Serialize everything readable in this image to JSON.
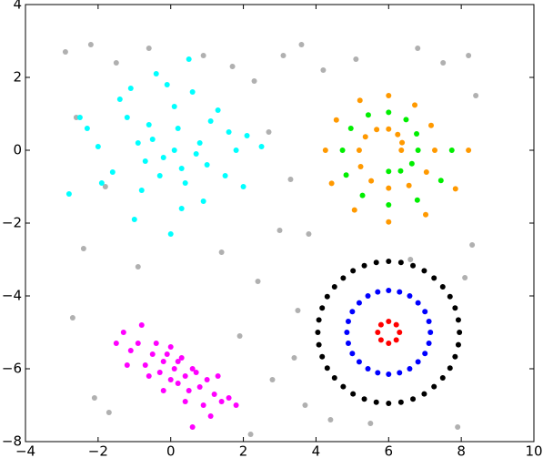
{
  "chart_data": {
    "type": "scatter",
    "xlim": [
      -4,
      10
    ],
    "ylim": [
      -8,
      4
    ],
    "xticks": [
      {
        "value": -4,
        "label": "−4"
      },
      {
        "value": -2,
        "label": "−2"
      },
      0,
      2,
      4,
      6,
      8,
      10
    ],
    "yticks": [
      {
        "value": -8,
        "label": "−8"
      },
      {
        "value": -6,
        "label": "−6"
      },
      {
        "value": -4,
        "label": "−4"
      },
      {
        "value": -2,
        "label": "−2"
      },
      0,
      2,
      4
    ],
    "grid": false,
    "series": [
      {
        "color": "#b0b0b0",
        "x": [
          -2.9,
          -2.2,
          -1.5,
          -0.6,
          0.9,
          1.7,
          2.3,
          3.1,
          3.6,
          4.2,
          5.1,
          6.8,
          7.5,
          8.2,
          -2.6,
          -1.8,
          2.7,
          3.3,
          3.8,
          8.4,
          -2.4,
          -0.9,
          1.4,
          2.4,
          3.0,
          3.5,
          8.1,
          -2.7,
          -1.7,
          1.9,
          2.8,
          3.4,
          4.4,
          7.9,
          8.3,
          -2.1,
          2.2,
          3.7,
          5.5,
          6.6
        ],
        "y": [
          2.7,
          2.9,
          2.4,
          2.8,
          2.6,
          2.3,
          1.9,
          2.6,
          2.9,
          2.2,
          2.5,
          2.8,
          2.4,
          2.6,
          0.9,
          -1.0,
          0.5,
          -0.8,
          -2.3,
          1.5,
          -2.7,
          -3.2,
          -2.8,
          -3.6,
          -2.2,
          -4.4,
          -3.5,
          -4.6,
          -7.2,
          -5.1,
          -6.3,
          -5.7,
          -7.4,
          -7.6,
          -2.6,
          -6.8,
          -7.8,
          -7.0,
          -7.5,
          -3.0
        ]
      },
      {
        "color": "#00ffff",
        "x": [
          -0.5,
          0.3,
          -1.2,
          0.8,
          1.5,
          -2.0,
          0.1,
          -0.8,
          1.1,
          -0.2,
          0.6,
          -1.6,
          2.1,
          -0.4,
          0.9,
          -2.8,
          0.2,
          -1.0,
          1.8,
          -0.6,
          0.4,
          -1.4,
          1.3,
          0.0,
          -0.9,
          0.7,
          -2.3,
          2.5,
          -0.1,
          1.0,
          -1.9,
          0.5,
          -0.3,
          1.6,
          -1.1,
          0.3,
          -0.7,
          2.0,
          -2.5,
          0.1
        ],
        "y": [
          0.3,
          -0.5,
          0.9,
          0.2,
          -0.7,
          0.1,
          1.2,
          -1.1,
          0.8,
          -0.2,
          1.6,
          -0.6,
          0.4,
          2.1,
          -1.4,
          -1.2,
          0.6,
          -1.9,
          0.0,
          0.7,
          -0.9,
          1.4,
          1.1,
          -2.3,
          0.2,
          -0.1,
          0.6,
          0.1,
          1.8,
          -0.4,
          -0.9,
          2.5,
          -0.7,
          0.5,
          1.7,
          -1.6,
          -0.3,
          -1.0,
          0.9,
          0.0
        ]
      },
      {
        "color": "#ff00ff",
        "x": [
          -1.3,
          -0.9,
          -0.5,
          -0.2,
          0.1,
          0.4,
          0.8,
          1.2,
          1.6,
          -1.1,
          -0.7,
          -0.3,
          0.0,
          0.3,
          0.6,
          1.0,
          1.4,
          -0.8,
          -0.4,
          0.2,
          0.5,
          0.9,
          -1.5,
          1.8,
          -0.1,
          0.7,
          -0.6,
          1.1,
          0.2,
          -0.2,
          0.4,
          -1.2,
          1.3,
          0.0,
          0.6
        ],
        "y": [
          -5.0,
          -5.3,
          -5.6,
          -5.8,
          -6.0,
          -6.2,
          -6.5,
          -6.7,
          -6.8,
          -5.5,
          -5.9,
          -6.1,
          -6.3,
          -5.7,
          -6.0,
          -6.3,
          -6.9,
          -4.8,
          -5.3,
          -6.4,
          -6.6,
          -7.0,
          -5.3,
          -7.0,
          -5.6,
          -6.1,
          -6.2,
          -7.3,
          -5.8,
          -6.6,
          -6.9,
          -5.9,
          -6.2,
          -5.4,
          -7.6
        ]
      },
      {
        "color": "#ff9900",
        "x": [
          6.35,
          6.37,
          6.25,
          6.0,
          5.67,
          5.36,
          5.19,
          5.23,
          5.52,
          6.0,
          6.56,
          7.04,
          7.27,
          7.17,
          6.72,
          6.0,
          5.21,
          4.56,
          4.26,
          4.43,
          5.06,
          6.0,
          7.02,
          7.84,
          8.2
        ],
        "y": [
          0,
          0.21,
          0.43,
          0.58,
          0.57,
          0.37,
          0,
          -0.45,
          -0.84,
          -1.04,
          -0.97,
          -0.6,
          0,
          0.68,
          1.24,
          1.5,
          1.37,
          0.83,
          0,
          -0.91,
          -1.64,
          -1.97,
          -1.77,
          -1.06,
          0
        ]
      },
      {
        "color": "#00ee00",
        "x": [
          6.0,
          6.33,
          6.64,
          6.81,
          6.77,
          6.48,
          6.0,
          5.44,
          4.96,
          4.73,
          4.83,
          5.28,
          6.0,
          6.79,
          7.44,
          7.74
        ],
        "y": [
          -0.58,
          -0.57,
          -0.37,
          0,
          0.45,
          0.84,
          1.04,
          0.97,
          0.6,
          0,
          -0.68,
          -1.24,
          -1.5,
          -1.37,
          -0.83,
          0
        ]
      },
      {
        "color": "#000000",
        "x": [
          7.95,
          7.92,
          7.83,
          7.69,
          7.49,
          7.25,
          6.98,
          6.67,
          6.34,
          6.0,
          5.66,
          5.33,
          5.02,
          4.75,
          4.51,
          4.31,
          4.17,
          4.08,
          4.05,
          4.08,
          4.17,
          4.31,
          4.51,
          4.75,
          5.02,
          5.33,
          5.66,
          6.0,
          6.34,
          6.67,
          6.98,
          7.25,
          7.49,
          7.69,
          7.83,
          7.92
        ],
        "y": [
          -5,
          -4.66,
          -4.33,
          -4.02,
          -3.75,
          -3.51,
          -3.31,
          -3.17,
          -3.08,
          -3.05,
          -3.08,
          -3.17,
          -3.31,
          -3.51,
          -3.75,
          -4.02,
          -4.33,
          -4.66,
          -5,
          -5.34,
          -5.67,
          -5.98,
          -6.25,
          -6.49,
          -6.69,
          -6.83,
          -6.92,
          -6.95,
          -6.92,
          -6.83,
          -6.69,
          -6.49,
          -6.25,
          -5.98,
          -5.67,
          -5.34
        ]
      },
      {
        "color": "#0000ff",
        "x": [
          7.15,
          7.11,
          7.0,
          6.81,
          6.58,
          6.3,
          6.0,
          5.7,
          5.43,
          5.19,
          5.0,
          4.89,
          4.85,
          4.89,
          5.0,
          5.19,
          5.43,
          5.7,
          6.0,
          6.3,
          6.58,
          6.81,
          7.0,
          7.11
        ],
        "y": [
          -5,
          -4.7,
          -4.43,
          -4.19,
          -4.0,
          -3.89,
          -3.85,
          -3.89,
          -4.0,
          -4.19,
          -4.43,
          -4.7,
          -5,
          -5.3,
          -5.58,
          -5.81,
          -6.0,
          -6.11,
          -6.15,
          -6.11,
          -6.0,
          -5.81,
          -5.58,
          -5.3
        ]
      },
      {
        "color": "#ff0000",
        "x": [
          6.3,
          6.21,
          6.0,
          5.79,
          5.7,
          5.79,
          6.0,
          6.21
        ],
        "y": [
          -5,
          -4.79,
          -4.7,
          -4.79,
          -5,
          -5.21,
          -5.3,
          -5.21
        ]
      }
    ]
  }
}
